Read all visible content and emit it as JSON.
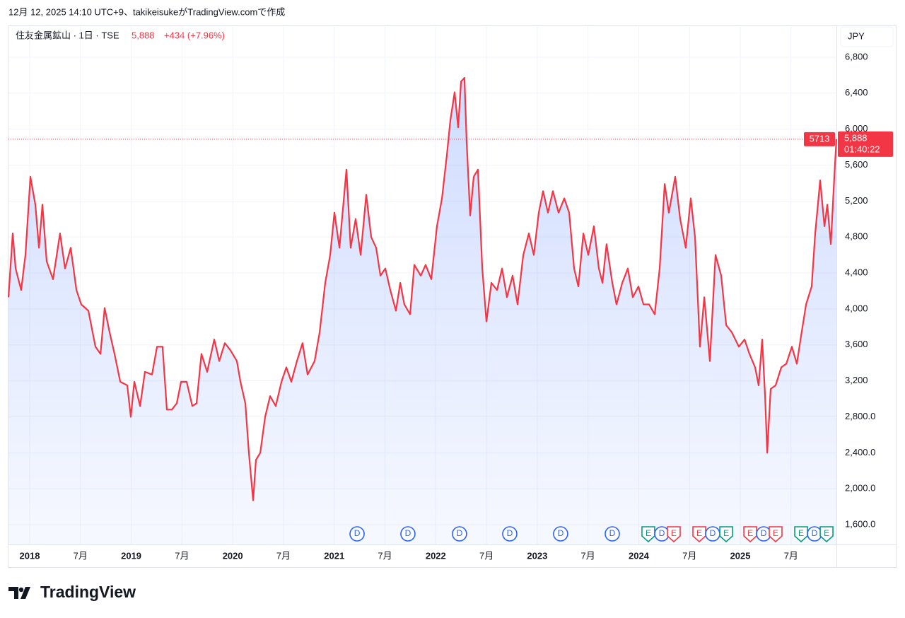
{
  "header": {
    "caption": "12月 12, 2025 14:10 UTC+9、takikeisukeがTradingView.comで作成",
    "logo": "TradingView"
  },
  "chart_data": {
    "type": "area",
    "title": "住友金属鉱山 · 1日 · TSE",
    "price": "5,888",
    "change": "+434 (+7.96%)",
    "currency": "JPY",
    "color": "#f23645",
    "fill": "#2962ff",
    "grid": true,
    "last_price": {
      "value": 5888,
      "label": "5,888"
    },
    "countdown": "01:40:22",
    "marker_label": "5713",
    "xlim": [
      2017.791,
      2025.947
    ],
    "ylim": [
      1380,
      6925
    ],
    "xticks": [
      2018,
      {
        "value": 2018.5,
        "label": "7月"
      },
      2019,
      {
        "value": 2019.5,
        "label": "7月"
      },
      2020,
      {
        "value": 2020.5,
        "label": "7月"
      },
      2021,
      {
        "value": 2021.5,
        "label": "7月"
      },
      2022,
      {
        "value": 2022.5,
        "label": "7月"
      },
      2023,
      {
        "value": 2023.5,
        "label": "7月"
      },
      2024,
      {
        "value": 2024.5,
        "label": "7月"
      },
      2025,
      {
        "value": 2025.5,
        "label": "7月"
      }
    ],
    "yticks": [
      {
        "value": 1600,
        "label": "1,600.0"
      },
      {
        "value": 2000,
        "label": "2,000.0"
      },
      {
        "value": 2400,
        "label": "2,400.0"
      },
      {
        "value": 2800,
        "label": "2,800.0"
      },
      {
        "value": 3200,
        "label": "3,200"
      },
      {
        "value": 3600,
        "label": "3,600"
      },
      {
        "value": 4000,
        "label": "4,000"
      },
      {
        "value": 4400,
        "label": "4,400"
      },
      {
        "value": 4800,
        "label": "4,800"
      },
      {
        "value": 5200,
        "label": "5,200"
      },
      {
        "value": 5600,
        "label": "5,600"
      },
      {
        "value": 6000,
        "label": "6,000"
      },
      {
        "value": 6400,
        "label": "6,400"
      },
      {
        "value": 6800,
        "label": "6,800"
      }
    ],
    "x": [
      2017.791,
      2017.833,
      2017.861,
      2017.916,
      2017.958,
      2018.007,
      2018.056,
      2018.091,
      2018.125,
      2018.167,
      2018.23,
      2018.299,
      2018.348,
      2018.404,
      2018.46,
      2018.508,
      2018.578,
      2018.648,
      2018.697,
      2018.738,
      2018.787,
      2018.836,
      2018.892,
      2018.961,
      2018.996,
      2019.031,
      2019.087,
      2019.135,
      2019.205,
      2019.254,
      2019.309,
      2019.351,
      2019.4,
      2019.449,
      2019.491,
      2019.546,
      2019.602,
      2019.644,
      2019.692,
      2019.748,
      2019.818,
      2019.867,
      2019.922,
      2019.978,
      2020.041,
      2020.076,
      2020.124,
      2020.159,
      2020.201,
      2020.229,
      2020.271,
      2020.319,
      2020.368,
      2020.424,
      2020.48,
      2020.528,
      2020.577,
      2020.633,
      2020.688,
      2020.737,
      2020.807,
      2020.856,
      2020.911,
      2020.96,
      2021.002,
      2021.051,
      2021.12,
      2021.162,
      2021.211,
      2021.26,
      2021.315,
      2021.364,
      2021.413,
      2021.455,
      2021.503,
      2021.552,
      2021.608,
      2021.65,
      2021.691,
      2021.747,
      2021.789,
      2021.852,
      2021.9,
      2021.956,
      2022.012,
      2022.061,
      2022.109,
      2022.144,
      2022.186,
      2022.221,
      2022.249,
      2022.283,
      2022.304,
      2022.339,
      2022.374,
      2022.416,
      2022.458,
      2022.499,
      2022.548,
      2022.604,
      2022.653,
      2022.701,
      2022.757,
      2022.806,
      2022.862,
      2022.917,
      2022.966,
      2023.015,
      2023.057,
      2023.105,
      2023.154,
      2023.21,
      2023.266,
      2023.314,
      2023.363,
      2023.405,
      2023.454,
      2023.502,
      2023.558,
      2023.607,
      2023.642,
      2023.683,
      2023.739,
      2023.781,
      2023.837,
      2023.892,
      2023.941,
      2023.997,
      2024.046,
      2024.101,
      2024.157,
      2024.206,
      2024.255,
      2024.296,
      2024.359,
      2024.408,
      2024.463,
      2024.512,
      2024.554,
      2024.603,
      2024.645,
      2024.7,
      2024.756,
      2024.812,
      2024.861,
      2024.916,
      2024.986,
      2025.042,
      2025.09,
      2025.146,
      2025.181,
      2025.216,
      2025.244,
      2025.265,
      2025.299,
      2025.348,
      2025.404,
      2025.453,
      2025.508,
      2025.557,
      2025.599,
      2025.648,
      2025.703,
      2025.738,
      2025.787,
      2025.829,
      2025.857,
      2025.892,
      2025.926,
      2025.947
    ],
    "values": [
      4130,
      4840,
      4450,
      4210,
      4600,
      5470,
      5160,
      4680,
      5160,
      4530,
      4330,
      4840,
      4450,
      4680,
      4210,
      4050,
      3980,
      3580,
      3500,
      4010,
      3740,
      3500,
      3190,
      3150,
      2800,
      3190,
      2920,
      3300,
      3270,
      3580,
      3580,
      2880,
      2880,
      2950,
      3190,
      3190,
      2920,
      2950,
      3500,
      3300,
      3660,
      3420,
      3620,
      3540,
      3420,
      3190,
      2950,
      2400,
      1870,
      2320,
      2400,
      2800,
      3030,
      2920,
      3190,
      3350,
      3190,
      3420,
      3620,
      3270,
      3420,
      3740,
      4290,
      4600,
      5070,
      4680,
      5550,
      4680,
      5000,
      4600,
      5270,
      4800,
      4680,
      4370,
      4450,
      4210,
      3980,
      4290,
      4050,
      3940,
      4490,
      4370,
      4490,
      4330,
      4920,
      5230,
      5710,
      6100,
      6410,
      6020,
      6530,
      6570,
      5860,
      5040,
      5470,
      5550,
      4450,
      3860,
      4290,
      4210,
      4450,
      4130,
      4370,
      4050,
      4600,
      4840,
      4600,
      5070,
      5310,
      5070,
      5310,
      5070,
      5230,
      5070,
      4450,
      4250,
      4840,
      4600,
      4920,
      4450,
      4290,
      4720,
      4290,
      4050,
      4290,
      4450,
      4130,
      4250,
      4050,
      4050,
      3940,
      4450,
      5390,
      5070,
      5470,
      5000,
      4680,
      5230,
      4800,
      3580,
      4130,
      3420,
      4600,
      4370,
      3820,
      3740,
      3580,
      3660,
      3500,
      3350,
      3150,
      3660,
      3030,
      2400,
      3110,
      3150,
      3350,
      3390,
      3580,
      3390,
      3700,
      4050,
      4250,
      4840,
      5430,
      4920,
      5160,
      4720,
      5470,
      5888
    ],
    "events": [
      {
        "x": 2021.225,
        "label": "D",
        "color": "#2962ff"
      },
      {
        "x": 2021.726,
        "label": "D",
        "color": "#2962ff"
      },
      {
        "x": 2022.234,
        "label": "D",
        "color": "#2962ff"
      },
      {
        "x": 2022.729,
        "label": "D",
        "color": "#2962ff"
      },
      {
        "x": 2023.23,
        "label": "D",
        "color": "#2962ff"
      },
      {
        "x": 2023.739,
        "label": "D",
        "color": "#2962ff"
      },
      {
        "x": 2024.094,
        "label": "E",
        "color": "#089981"
      },
      {
        "x": 2024.227,
        "label": "D",
        "color": "#2962ff"
      },
      {
        "x": 2024.345,
        "label": "E",
        "color": "#f23645"
      },
      {
        "x": 2024.596,
        "label": "E",
        "color": "#f23645"
      },
      {
        "x": 2024.728,
        "label": "D",
        "color": "#2962ff"
      },
      {
        "x": 2024.861,
        "label": "E",
        "color": "#089981"
      },
      {
        "x": 2025.098,
        "label": "E",
        "color": "#f23645"
      },
      {
        "x": 2025.23,
        "label": "D",
        "color": "#2962ff"
      },
      {
        "x": 2025.348,
        "label": "E",
        "color": "#f23645"
      },
      {
        "x": 2025.599,
        "label": "E",
        "color": "#089981"
      },
      {
        "x": 2025.731,
        "label": "D",
        "color": "#2962ff"
      },
      {
        "x": 2025.85,
        "label": "E",
        "color": "#089981"
      }
    ]
  }
}
